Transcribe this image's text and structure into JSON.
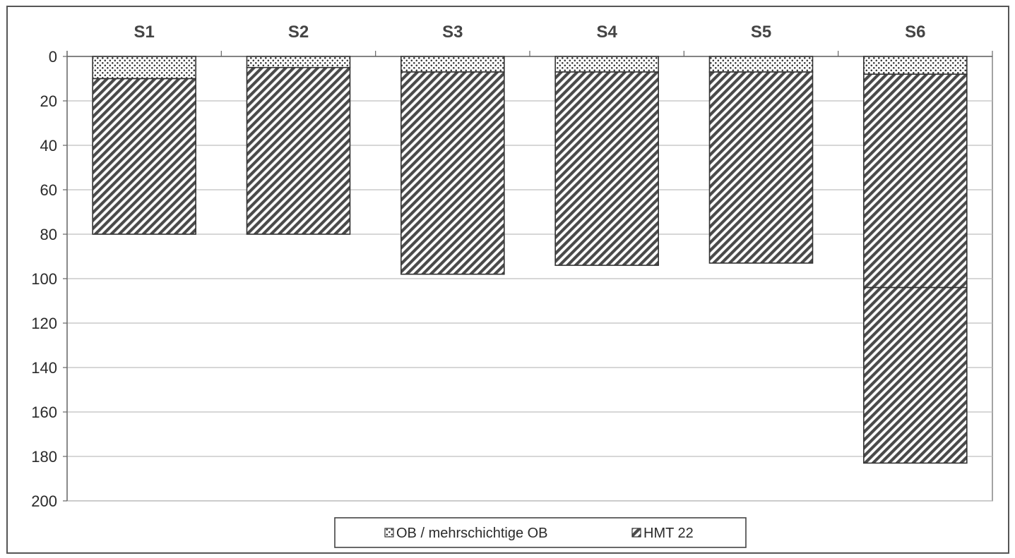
{
  "chart_data": {
    "type": "bar",
    "stacked": true,
    "orientation": "vertical-downward",
    "categories": [
      "S1",
      "S2",
      "S3",
      "S4",
      "S5",
      "S6"
    ],
    "category_axis_position": "top",
    "y_axis": {
      "reversed": true,
      "min": 0,
      "max": 200,
      "ticks": [
        0,
        20,
        40,
        60,
        80,
        100,
        120,
        140,
        160,
        180,
        200
      ]
    },
    "grid": true,
    "legend_position": "bottom",
    "series": [
      {
        "name": "OB / mehrschichtige OB",
        "pattern": "dotted",
        "values": [
          10,
          5,
          7,
          7,
          7,
          8
        ]
      },
      {
        "name": "HMT 22",
        "pattern": "hatched",
        "values": [
          70,
          75,
          91,
          87,
          86,
          96
        ]
      },
      {
        "name": "",
        "pattern": "hatched",
        "values": [
          0,
          0,
          0,
          0,
          0,
          79
        ]
      }
    ],
    "legend": [
      "OB / mehrschichtige OB",
      "HMT 22"
    ],
    "colors": {
      "fill": "#5a5a5a",
      "stroke": "#333333",
      "grid": "#bfbfbf",
      "frame": "#555555"
    }
  }
}
